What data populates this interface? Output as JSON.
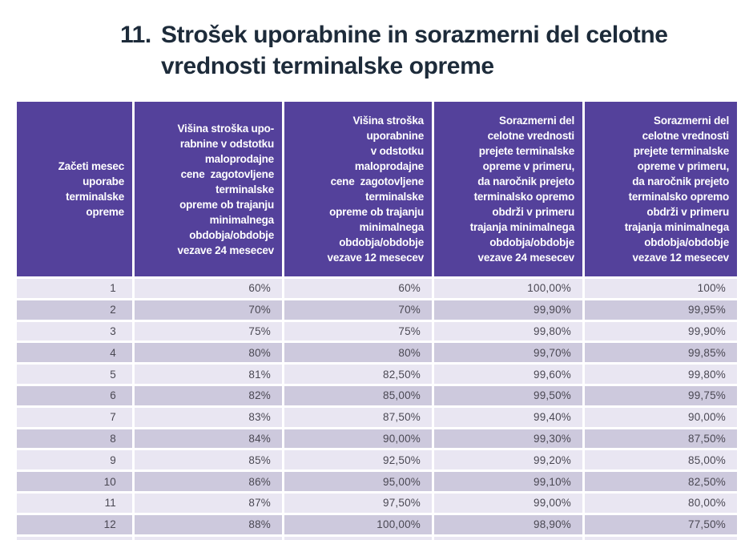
{
  "colors": {
    "header_bg": "#54419b",
    "row_light": "#e9e6f2",
    "row_dark": "#cdc9dd",
    "title_text": "#1d2b3a",
    "cell_text": "#4a4853",
    "header_text": "#ffffff",
    "page_bg": "#ffffff"
  },
  "title": {
    "number": "11.",
    "lines": [
      "Strošek uporabnine in sorazmerni del celotne",
      "vrednosti terminalske opreme"
    ]
  },
  "table": {
    "columns": [
      {
        "id": "start-month",
        "header_lines": [
          "Začeti mesec",
          "uporabe",
          "terminalske",
          "opreme"
        ]
      },
      {
        "id": "usage-fee-24m",
        "header_lines": [
          "Višina stroška upo-",
          "rabnine v odstotku",
          "maloprodajne",
          "cene  zagotovljene",
          "terminalske",
          "opreme ob trajanju",
          "minimalnega",
          "obdobja/obdobje",
          "vezave 24 mesecev"
        ]
      },
      {
        "id": "usage-fee-12m",
        "header_lines": [
          "Višina stroška",
          "uporabnine",
          "v odstotku",
          "maloprodajne",
          "cene  zagotovljene",
          "terminalske",
          "opreme ob trajanju",
          "minimalnega",
          "obdobja/obdobje",
          "vezave 12 mesecev"
        ]
      },
      {
        "id": "proportional-value-24m",
        "header_lines": [
          "Sorazmerni del",
          "celotne vrednosti",
          "prejete terminalske",
          "opreme v primeru,",
          "da naročnik prejeto",
          "terminalsko opremo",
          "obdrži v primeru",
          "trajanja minimalnega",
          "obdobja/obdobje",
          "vezave 24 mesecev"
        ]
      },
      {
        "id": "proportional-value-12m",
        "header_lines": [
          "Sorazmerni del",
          "celotne vrednosti",
          "prejete terminalske",
          "opreme v primeru,",
          "da naročnik prejeto",
          "terminalsko opremo",
          "obdrži v primeru",
          "trajanja minimalnega",
          "obdobja/obdobje",
          "vezave 12 mesecev"
        ]
      }
    ],
    "rows": [
      [
        "1",
        "60%",
        "60%",
        "100,00%",
        "100%"
      ],
      [
        "2",
        "70%",
        "70%",
        "99,90%",
        "99,95%"
      ],
      [
        "3",
        "75%",
        "75%",
        "99,80%",
        "99,90%"
      ],
      [
        "4",
        "80%",
        "80%",
        "99,70%",
        "99,85%"
      ],
      [
        "5",
        "81%",
        "82,50%",
        "99,60%",
        "99,80%"
      ],
      [
        "6",
        "82%",
        "85,00%",
        "99,50%",
        "99,75%"
      ],
      [
        "7",
        "83%",
        "87,50%",
        "99,40%",
        "90,00%"
      ],
      [
        "8",
        "84%",
        "90,00%",
        "99,30%",
        "87,50%"
      ],
      [
        "9",
        "85%",
        "92,50%",
        "99,20%",
        "85,00%"
      ],
      [
        "10",
        "86%",
        "95,00%",
        "99,10%",
        "82,50%"
      ],
      [
        "11",
        "87%",
        "97,50%",
        "99,00%",
        "80,00%"
      ],
      [
        "12",
        "88%",
        "100,00%",
        "98,90%",
        "77,50%"
      ]
    ],
    "partial_row_visible": true
  }
}
